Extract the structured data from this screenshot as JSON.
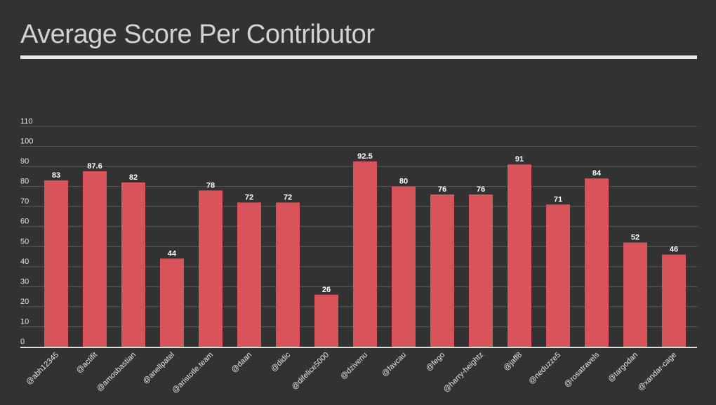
{
  "title": "Average Score Per Contributor",
  "colors": {
    "bar": "#d9545a",
    "background": "#323232",
    "text": "#e6e6e6"
  },
  "chart_data": {
    "type": "bar",
    "title": "Average Score Per Contributor",
    "xlabel": "",
    "ylabel": "",
    "ylim": [
      0,
      110
    ],
    "yticks": [
      0,
      10,
      20,
      30,
      40,
      50,
      60,
      70,
      80,
      90,
      100,
      110
    ],
    "grid": true,
    "legend": "none",
    "categories": [
      "@abh12345",
      "@actifit",
      "@amosbastian",
      "@anellpatel",
      "@aristotle.team",
      "@daan",
      "@didic",
      "@difelice5000",
      "@dzivenu",
      "@favcau",
      "@fego",
      "@harry-heightz",
      "@jaff8",
      "@neduzze5",
      "@rosatravels",
      "@targodan",
      "@xandar-cage"
    ],
    "values": [
      83,
      87.6,
      82,
      44,
      78,
      72,
      72,
      26,
      92.5,
      80,
      76,
      76,
      91,
      71,
      84,
      52,
      46
    ],
    "value_labels": [
      "83",
      "87.6",
      "82",
      "44",
      "78",
      "72",
      "72",
      "26",
      "92.5",
      "80",
      "76",
      "76",
      "91",
      "71",
      "84",
      "52",
      "46"
    ]
  }
}
